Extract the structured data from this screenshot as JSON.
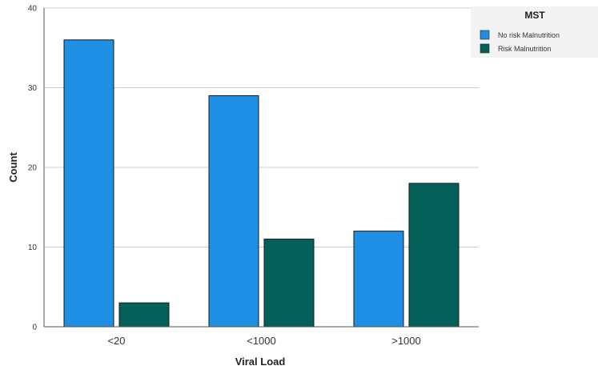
{
  "chart_data": {
    "type": "bar",
    "xlabel": "Viral Load",
    "ylabel": "Count",
    "categories": [
      "<20",
      "<1000",
      ">1000"
    ],
    "ylim": [
      0,
      40
    ],
    "yticks": [
      0,
      10,
      20,
      30,
      40
    ],
    "grid": true,
    "legend": {
      "title": "MST",
      "placement": "top-right"
    },
    "series": [
      {
        "name": "No risk Malnutrition",
        "values": [
          36,
          29,
          12
        ],
        "color": "#1f8fe3"
      },
      {
        "name": "Risk Malnutrition",
        "values": [
          3,
          11,
          18
        ],
        "color": "#05605a"
      }
    ]
  }
}
